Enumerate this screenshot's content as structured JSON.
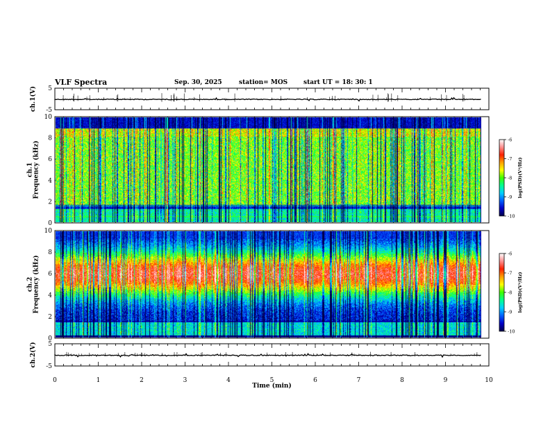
{
  "header": {
    "title": "VLF Spectra",
    "date": "Sep. 30, 2025",
    "station": "station= MOS",
    "start": "start  UT =   18: 30: 1"
  },
  "chart_data": [
    {
      "type": "line",
      "name": "ch1-waveform",
      "ylabel": "ch.1(V)",
      "ylim": [
        -5,
        5
      ],
      "ytick_labels": [
        "5",
        "-5"
      ],
      "baseline": -0.2
    },
    {
      "type": "heatmap",
      "name": "ch1-spectrogram",
      "ylabel": "ch.1\nFrequency (kHz)",
      "ylim": [
        0,
        10
      ],
      "ytick_labels": [
        "0",
        "2",
        "4",
        "6",
        "8",
        "10"
      ],
      "colorbar": {
        "label": "log(PSD)(V²/Hz)",
        "range": [
          -10,
          -6
        ],
        "tick_labels": [
          "-6",
          "-7",
          "-8",
          "-9",
          "-10"
        ]
      }
    },
    {
      "type": "heatmap",
      "name": "ch2-spectrogram",
      "ylabel": "ch.2\nFrequency (kHz)",
      "ylim": [
        0,
        10
      ],
      "ytick_labels": [
        "0",
        "2",
        "4",
        "6",
        "8",
        "10"
      ],
      "colorbar": {
        "label": "log(PSD)(V²/Hz)",
        "range": [
          -10,
          -6
        ],
        "tick_labels": [
          "-6",
          "-7",
          "-8",
          "-9",
          "-10"
        ]
      }
    },
    {
      "type": "line",
      "name": "ch2-waveform",
      "ylabel": "ch.2(V)",
      "ylim": [
        -5,
        5
      ],
      "ytick_labels": [
        "5",
        "-5"
      ],
      "baseline": -0.2
    }
  ],
  "xaxis": {
    "label": "Time (min)",
    "range": [
      0,
      10
    ],
    "data_end": 9.82,
    "tick_labels": [
      "0",
      "1",
      "2",
      "3",
      "4",
      "5",
      "6",
      "7",
      "8",
      "9",
      "10"
    ]
  },
  "colors": {
    "colormap": [
      "#00004a",
      "#0000c8",
      "#0060ff",
      "#00d0ff",
      "#00ff90",
      "#40ff00",
      "#ffff00",
      "#ffa000",
      "#ff2000",
      "#ff9090",
      "#ffffff"
    ]
  }
}
